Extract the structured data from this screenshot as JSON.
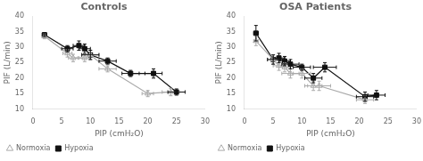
{
  "chart_data": [
    {
      "type": "line",
      "title": "Controls",
      "xlabel": "PIP (cmH₂O)",
      "ylabel": "PIF (L/min)",
      "xlim": [
        0,
        30
      ],
      "xticks": [
        0,
        5,
        10,
        15,
        20,
        25,
        30
      ],
      "ylim": [
        10,
        40
      ],
      "yticks": [
        10,
        15,
        20,
        25,
        30,
        35,
        40
      ],
      "grid": false,
      "legend": "lower left",
      "series": [
        {
          "name": "Normoxia",
          "color": "#aaaaaa",
          "marker": "open-triangle",
          "line_style": "solid",
          "x": [
            2,
            6,
            7,
            9,
            10,
            13,
            20,
            24
          ],
          "values": [
            33.5,
            28.0,
            26.5,
            26.5,
            27.5,
            23.0,
            15.0,
            15.5
          ],
          "xerr": [
            0.4,
            0.8,
            0.8,
            1.0,
            1.5,
            1.5,
            1.0,
            1.5
          ],
          "yerr": [
            0.8,
            1.2,
            1.2,
            1.2,
            1.5,
            1.0,
            1.0,
            1.2
          ]
        },
        {
          "name": "Hypoxia",
          "color": "#111111",
          "marker": "square",
          "line_style": "solid",
          "x": [
            2,
            6,
            8,
            9,
            10,
            13,
            17,
            21,
            25
          ],
          "values": [
            34.0,
            29.5,
            30.5,
            29.5,
            27.5,
            25.5,
            21.5,
            21.5,
            15.5
          ],
          "xerr": [
            0.4,
            1.0,
            1.0,
            1.0,
            1.5,
            1.5,
            1.5,
            1.5,
            1.5
          ],
          "yerr": [
            0.6,
            1.0,
            1.5,
            1.5,
            1.5,
            1.0,
            1.0,
            1.5,
            1.0
          ]
        }
      ]
    },
    {
      "type": "line",
      "title": "OSA Patients",
      "xlabel": "PIP (cmH₂O)",
      "ylabel": "PIF (L/min)",
      "xlim": [
        0,
        30
      ],
      "xticks": [
        0,
        5,
        10,
        15,
        20,
        25,
        30
      ],
      "ylim": [
        10,
        40
      ],
      "yticks": [
        10,
        15,
        20,
        25,
        30,
        35,
        40
      ],
      "grid": false,
      "legend": "lower left",
      "series": [
        {
          "name": "Normoxia",
          "color": "#aaaaaa",
          "marker": "open-triangle",
          "line_style": "solid",
          "x": [
            2,
            5,
            6,
            7,
            8,
            10,
            12,
            13,
            21
          ],
          "values": [
            32.0,
            26.0,
            24.0,
            23.5,
            21.5,
            21.5,
            17.5,
            17.5,
            13.0
          ],
          "xerr": [
            0.4,
            1.0,
            1.0,
            1.0,
            1.5,
            1.5,
            1.5,
            2.0,
            1.5
          ],
          "yerr": [
            1.5,
            1.5,
            1.5,
            1.5,
            1.5,
            1.5,
            1.5,
            1.5,
            1.2
          ]
        },
        {
          "name": "Hypoxia",
          "color": "#111111",
          "marker": "square",
          "line_style": "solid",
          "x": [
            2,
            5,
            6,
            7,
            8,
            10,
            12,
            14,
            21,
            23
          ],
          "values": [
            34.5,
            26.0,
            26.5,
            25.5,
            24.5,
            23.5,
            20.0,
            23.5,
            14.0,
            14.5
          ],
          "xerr": [
            0.4,
            1.0,
            1.0,
            1.0,
            1.5,
            1.5,
            1.5,
            2.0,
            1.5,
            1.5
          ],
          "yerr": [
            2.5,
            1.5,
            1.5,
            1.5,
            1.5,
            1.0,
            1.5,
            1.5,
            1.5,
            1.5
          ]
        }
      ]
    }
  ]
}
